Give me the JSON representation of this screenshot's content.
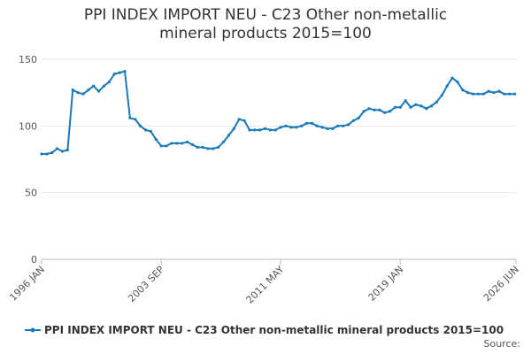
{
  "chart_data": {
    "type": "line",
    "title": "PPI INDEX IMPORT NEU - C23 Other non-metallic mineral products 2015=100",
    "x": [
      "1996 JAN",
      "1996 MAY",
      "1996 SEP",
      "1997 JAN",
      "1997 MAY",
      "1997 SEP",
      "1998 JAN",
      "1998 MAY",
      "1998 SEP",
      "1999 JAN",
      "1999 MAY",
      "1999 SEP",
      "2000 JAN",
      "2000 MAY",
      "2000 SEP",
      "2001 JAN",
      "2001 MAY",
      "2001 SEP",
      "2002 JAN",
      "2002 MAY",
      "2002 SEP",
      "2003 JAN",
      "2003 MAY",
      "2003 SEP",
      "2004 JAN",
      "2004 MAY",
      "2004 SEP",
      "2005 JAN",
      "2005 MAY",
      "2005 SEP",
      "2006 JAN",
      "2006 MAY",
      "2006 SEP",
      "2007 JAN",
      "2007 MAY",
      "2007 SEP",
      "2008 JAN",
      "2008 MAY",
      "2008 SEP",
      "2009 JAN",
      "2009 MAY",
      "2009 SEP",
      "2010 JAN",
      "2010 MAY",
      "2010 SEP",
      "2011 JAN",
      "2011 MAY",
      "2011 SEP",
      "2012 JAN",
      "2012 MAY",
      "2012 SEP",
      "2013 JAN",
      "2013 MAY",
      "2013 SEP",
      "2014 JAN",
      "2014 MAY",
      "2014 SEP",
      "2015 JAN",
      "2015 MAY",
      "2015 SEP",
      "2016 JAN",
      "2016 MAY",
      "2016 SEP",
      "2017 JAN",
      "2017 MAY",
      "2017 SEP",
      "2018 JAN",
      "2018 MAY",
      "2018 SEP",
      "2019 JAN",
      "2019 MAY",
      "2019 SEP",
      "2020 JAN",
      "2020 MAY",
      "2020 SEP",
      "2021 JAN",
      "2021 MAY",
      "2021 SEP",
      "2022 JAN",
      "2022 MAY",
      "2022 SEP",
      "2023 JAN",
      "2023 MAY",
      "2023 SEP",
      "2024 JAN",
      "2024 MAY",
      "2024 SEP",
      "2025 JAN",
      "2025 MAY",
      "2025 SEP",
      "2026 JAN",
      "2026 MAY"
    ],
    "series": [
      {
        "name": "PPI INDEX IMPORT NEU - C23 Other non-metallic mineral products 2015=100",
        "color": "#1a7ab8",
        "values": [
          79,
          79,
          80,
          83,
          81,
          82,
          127,
          125,
          124,
          127,
          130,
          126,
          130,
          133,
          139,
          140,
          141,
          106,
          105,
          100,
          97,
          96,
          90,
          85,
          85,
          87,
          87,
          87,
          88,
          86,
          84,
          84,
          83,
          83,
          84,
          88,
          93,
          98,
          105,
          104,
          97,
          97,
          97,
          98,
          97,
          97,
          99,
          100,
          99,
          99,
          100,
          102,
          102,
          100,
          99,
          98,
          98,
          100,
          100,
          101,
          104,
          106,
          111,
          113,
          112,
          112,
          110,
          111,
          114,
          114,
          119,
          114,
          116,
          115,
          113,
          115,
          118,
          123,
          130,
          136,
          133,
          127,
          125,
          124,
          124,
          124,
          126,
          125,
          126,
          124,
          124,
          124
        ]
      }
    ],
    "xlim": [
      "1996 JAN",
      "2026 JUN"
    ],
    "xticks": [
      "1996 JAN",
      "2003 SEP",
      "2011 MAY",
      "2019 JAN",
      "2026 JUN"
    ],
    "ylim": [
      0,
      150
    ],
    "yticks": [
      0,
      50,
      100,
      150
    ],
    "grid": true,
    "source": "Source:"
  }
}
